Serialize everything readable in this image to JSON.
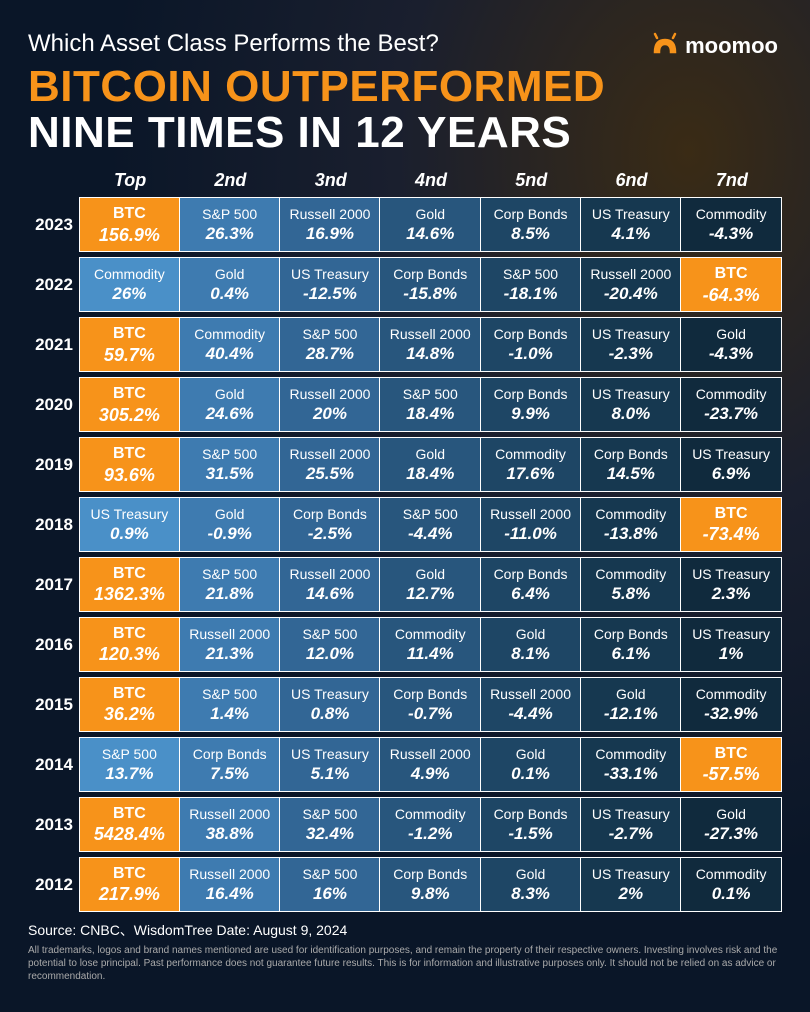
{
  "subtitle": "Which Asset Class Performs the Best?",
  "brand": "moomoo",
  "title_line1": "BITCOIN OUTPERFORMED",
  "title_line2": "NINE TIMES IN 12 YEARS",
  "columns": [
    "Top",
    "2nd",
    "3nd",
    "4nd",
    "5nd",
    "6nd",
    "7nd"
  ],
  "colors": {
    "btc": "#f7931a",
    "gradient": [
      "#4a90c8",
      "#3e7bb0",
      "#326695",
      "#28567d",
      "#1e4665",
      "#163850",
      "#102a3d"
    ],
    "border": "#ffffff",
    "text": "#ffffff",
    "background": "#0a1628",
    "title_accent": "#f7931a"
  },
  "years": [
    {
      "year": "2023",
      "cells": [
        {
          "name": "BTC",
          "val": "156.9%",
          "btc": true
        },
        {
          "name": "S&P 500",
          "val": "26.3%"
        },
        {
          "name": "Russell 2000",
          "val": "16.9%"
        },
        {
          "name": "Gold",
          "val": "14.6%"
        },
        {
          "name": "Corp Bonds",
          "val": "8.5%"
        },
        {
          "name": "US Treasury",
          "val": "4.1%"
        },
        {
          "name": "Commodity",
          "val": "-4.3%"
        }
      ]
    },
    {
      "year": "2022",
      "cells": [
        {
          "name": "Commodity",
          "val": "26%"
        },
        {
          "name": "Gold",
          "val": "0.4%"
        },
        {
          "name": "US Treasury",
          "val": "-12.5%"
        },
        {
          "name": "Corp Bonds",
          "val": "-15.8%"
        },
        {
          "name": "S&P 500",
          "val": "-18.1%"
        },
        {
          "name": "Russell 2000",
          "val": "-20.4%"
        },
        {
          "name": "BTC",
          "val": "-64.3%",
          "btc": true
        }
      ]
    },
    {
      "year": "2021",
      "cells": [
        {
          "name": "BTC",
          "val": "59.7%",
          "btc": true
        },
        {
          "name": "Commodity",
          "val": "40.4%"
        },
        {
          "name": "S&P 500",
          "val": "28.7%"
        },
        {
          "name": "Russell 2000",
          "val": "14.8%"
        },
        {
          "name": "Corp Bonds",
          "val": "-1.0%"
        },
        {
          "name": "US Treasury",
          "val": "-2.3%"
        },
        {
          "name": "Gold",
          "val": "-4.3%"
        }
      ]
    },
    {
      "year": "2020",
      "cells": [
        {
          "name": "BTC",
          "val": "305.2%",
          "btc": true
        },
        {
          "name": "Gold",
          "val": "24.6%"
        },
        {
          "name": "Russell 2000",
          "val": "20%"
        },
        {
          "name": "S&P 500",
          "val": "18.4%"
        },
        {
          "name": "Corp Bonds",
          "val": "9.9%"
        },
        {
          "name": "US Treasury",
          "val": "8.0%"
        },
        {
          "name": "Commodity",
          "val": "-23.7%"
        }
      ]
    },
    {
      "year": "2019",
      "cells": [
        {
          "name": "BTC",
          "val": "93.6%",
          "btc": true
        },
        {
          "name": "S&P 500",
          "val": "31.5%"
        },
        {
          "name": "Russell 2000",
          "val": "25.5%"
        },
        {
          "name": "Gold",
          "val": "18.4%"
        },
        {
          "name": "Commodity",
          "val": "17.6%"
        },
        {
          "name": "Corp Bonds",
          "val": "14.5%"
        },
        {
          "name": "US Treasury",
          "val": "6.9%"
        }
      ]
    },
    {
      "year": "2018",
      "cells": [
        {
          "name": "US Treasury",
          "val": "0.9%"
        },
        {
          "name": "Gold",
          "val": "-0.9%"
        },
        {
          "name": "Corp Bonds",
          "val": "-2.5%"
        },
        {
          "name": "S&P 500",
          "val": "-4.4%"
        },
        {
          "name": "Russell 2000",
          "val": "-11.0%"
        },
        {
          "name": "Commodity",
          "val": "-13.8%"
        },
        {
          "name": "BTC",
          "val": "-73.4%",
          "btc": true
        }
      ]
    },
    {
      "year": "2017",
      "cells": [
        {
          "name": "BTC",
          "val": "1362.3%",
          "btc": true
        },
        {
          "name": "S&P 500",
          "val": "21.8%"
        },
        {
          "name": "Russell 2000",
          "val": "14.6%"
        },
        {
          "name": "Gold",
          "val": "12.7%"
        },
        {
          "name": "Corp Bonds",
          "val": "6.4%"
        },
        {
          "name": "Commodity",
          "val": "5.8%"
        },
        {
          "name": "US Treasury",
          "val": "2.3%"
        }
      ]
    },
    {
      "year": "2016",
      "cells": [
        {
          "name": "BTC",
          "val": "120.3%",
          "btc": true
        },
        {
          "name": "Russell 2000",
          "val": "21.3%"
        },
        {
          "name": "S&P 500",
          "val": "12.0%"
        },
        {
          "name": "Commodity",
          "val": "11.4%"
        },
        {
          "name": "Gold",
          "val": "8.1%"
        },
        {
          "name": "Corp Bonds",
          "val": "6.1%"
        },
        {
          "name": "US Treasury",
          "val": "1%"
        }
      ]
    },
    {
      "year": "2015",
      "cells": [
        {
          "name": "BTC",
          "val": "36.2%",
          "btc": true
        },
        {
          "name": "S&P 500",
          "val": "1.4%"
        },
        {
          "name": "US Treasury",
          "val": "0.8%"
        },
        {
          "name": "Corp Bonds",
          "val": "-0.7%"
        },
        {
          "name": "Russell 2000",
          "val": "-4.4%"
        },
        {
          "name": "Gold",
          "val": "-12.1%"
        },
        {
          "name": "Commodity",
          "val": "-32.9%"
        }
      ]
    },
    {
      "year": "2014",
      "cells": [
        {
          "name": "S&P 500",
          "val": "13.7%"
        },
        {
          "name": "Corp Bonds",
          "val": "7.5%"
        },
        {
          "name": "US Treasury",
          "val": "5.1%"
        },
        {
          "name": "Russell 2000",
          "val": "4.9%"
        },
        {
          "name": "Gold",
          "val": "0.1%"
        },
        {
          "name": "Commodity",
          "val": "-33.1%"
        },
        {
          "name": "BTC",
          "val": "-57.5%",
          "btc": true
        }
      ]
    },
    {
      "year": "2013",
      "cells": [
        {
          "name": "BTC",
          "val": "5428.4%",
          "btc": true
        },
        {
          "name": "Russell 2000",
          "val": "38.8%"
        },
        {
          "name": "S&P 500",
          "val": "32.4%"
        },
        {
          "name": "Commodity",
          "val": "-1.2%"
        },
        {
          "name": "Corp Bonds",
          "val": "-1.5%"
        },
        {
          "name": "US Treasury",
          "val": "-2.7%"
        },
        {
          "name": "Gold",
          "val": "-27.3%"
        }
      ]
    },
    {
      "year": "2012",
      "cells": [
        {
          "name": "BTC",
          "val": "217.9%",
          "btc": true
        },
        {
          "name": "Russell 2000",
          "val": "16.4%"
        },
        {
          "name": "S&P 500",
          "val": "16%"
        },
        {
          "name": "Corp Bonds",
          "val": "9.8%"
        },
        {
          "name": "Gold",
          "val": "8.3%"
        },
        {
          "name": "US Treasury",
          "val": "2%"
        },
        {
          "name": "Commodity",
          "val": "0.1%"
        }
      ]
    }
  ],
  "source": "Source: CNBC、WisdomTree    Date: August 9, 2024",
  "disclaimer": "All trademarks, logos and brand names mentioned are used for identification purposes, and remain the property of their respective owners. Investing involves risk and the potential to lose principal. Past performance does not guarantee future results. This is for information and illustrative purposes only. It should not be relied on as advice or recommendation."
}
